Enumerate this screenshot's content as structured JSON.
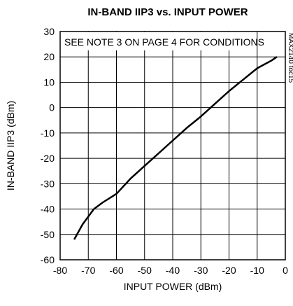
{
  "chart_data": {
    "type": "line",
    "title": "IN-BAND IIP3 vs. INPUT POWER",
    "annotation": "SEE NOTE 3 ON PAGE 4 FOR CONDITIONS",
    "side_label": "MAX2140 toc15",
    "xlabel": "INPUT POWER (dBm)",
    "ylabel": "IN-BAND IIP3 (dBm)",
    "x": [
      -75,
      -72,
      -70,
      -68,
      -65,
      -60,
      -55,
      -50,
      -45,
      -40,
      -35,
      -30,
      -25,
      -20,
      -15,
      -10,
      -5,
      -3
    ],
    "series": [
      {
        "name": "IIP3",
        "color": "#000000",
        "values": [
          -52,
          -46,
          -43,
          -40,
          -37.5,
          -34,
          -28,
          -23,
          -18,
          -13,
          -8,
          -3.5,
          1.5,
          6.5,
          11,
          15.5,
          18.5,
          20
        ]
      }
    ],
    "xlim": [
      -80,
      0
    ],
    "xticks": [
      -80,
      -70,
      -60,
      -50,
      -40,
      -30,
      -20,
      -10,
      0
    ],
    "ylim": [
      -60,
      30
    ],
    "yticks": [
      -60,
      -50,
      -40,
      -30,
      -20,
      -10,
      0,
      10,
      20,
      30
    ],
    "grid": true
  }
}
